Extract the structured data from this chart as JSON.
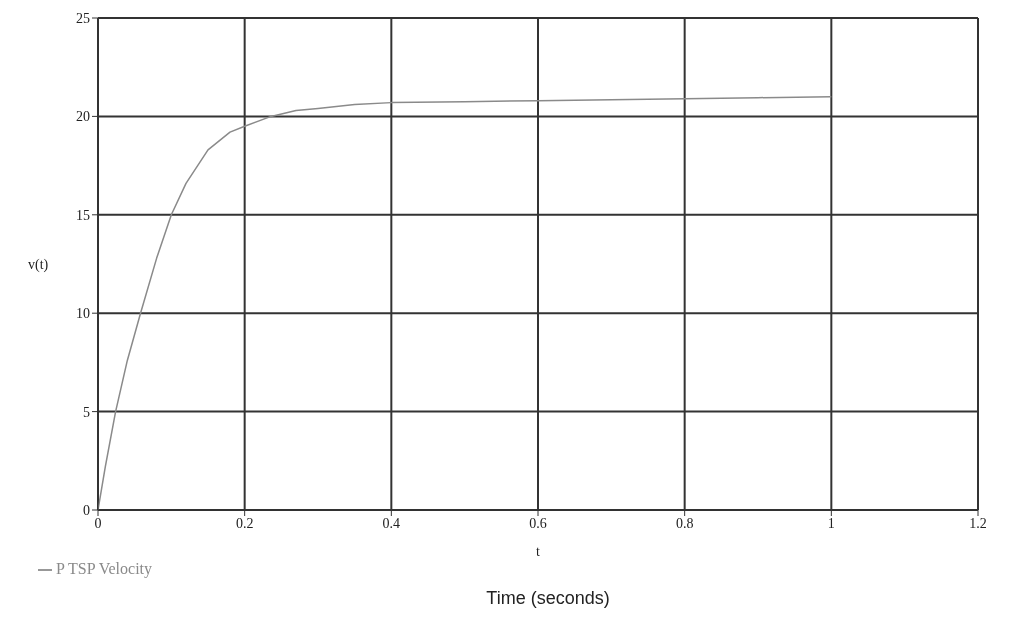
{
  "chart_data": {
    "type": "line",
    "xlabel": "t",
    "ylabel": "v(t)",
    "annotations": [
      "Time (seconds)"
    ],
    "x": [
      0,
      0.01,
      0.024,
      0.04,
      0.058,
      0.08,
      0.1,
      0.12,
      0.15,
      0.18,
      0.2,
      0.236,
      0.27,
      0.3,
      0.35,
      0.4,
      0.5,
      0.6,
      0.7,
      0.8,
      0.9,
      1.0
    ],
    "series": [
      {
        "name": "P TSP Velocity",
        "color": "#8a8a8a",
        "values": [
          0,
          2.2,
          5,
          7.6,
          10,
          12.8,
          15,
          16.6,
          18.3,
          19.2,
          19.5,
          20,
          20.3,
          20.4,
          20.6,
          20.7,
          20.75,
          20.8,
          20.85,
          20.9,
          20.95,
          21.0
        ]
      }
    ],
    "xlim": [
      0,
      1.2
    ],
    "xticks": [
      0,
      0.2,
      0.4,
      0.6,
      0.8,
      1,
      1.2
    ],
    "ylim": [
      0,
      25
    ],
    "yticks": [
      0,
      5,
      10,
      15,
      20,
      25
    ],
    "grid": true,
    "legend": "bottom left",
    "marker": "none",
    "line_style": "solid"
  }
}
